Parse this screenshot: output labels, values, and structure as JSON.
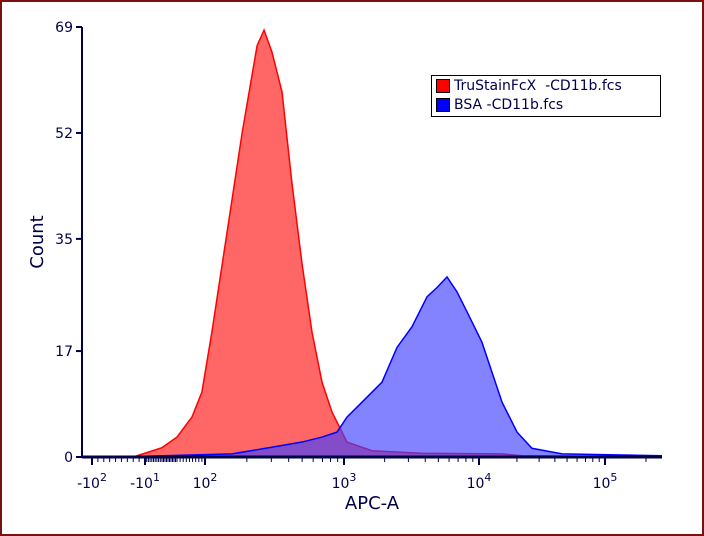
{
  "chart_data": {
    "type": "area",
    "xlabel": "APC-A",
    "ylabel": "Count",
    "x_scale": "logicle",
    "xlim": [
      -150,
      262144
    ],
    "ylim": [
      0,
      69
    ],
    "x_ticks": [
      {
        "value": -100,
        "base": "-10",
        "exp": "2"
      },
      {
        "value": -10,
        "base": "-10",
        "exp": "1"
      },
      {
        "value": 100,
        "base": "10",
        "exp": "2"
      },
      {
        "value": 1000,
        "base": "10",
        "exp": "3"
      },
      {
        "value": 10000,
        "base": "10",
        "exp": "4"
      },
      {
        "value": 100000,
        "base": "10",
        "exp": "5"
      }
    ],
    "y_ticks": [
      0,
      17,
      35,
      52,
      69
    ],
    "grid": false,
    "legend_position": "top-right",
    "series": [
      {
        "name": "TruStainFcX  -CD11b.fcs",
        "color": "#ff0000",
        "fill": "#ff4040",
        "points": [
          [
            -30,
            0
          ],
          [
            0,
            1.5
          ],
          [
            10,
            3.2
          ],
          [
            58,
            6.4
          ],
          [
            90,
            10.4
          ],
          [
            112,
            20
          ],
          [
            144,
            36
          ],
          [
            185,
            52
          ],
          [
            237,
            66
          ],
          [
            266,
            68.5
          ],
          [
            303,
            65
          ],
          [
            358,
            58.6
          ],
          [
            422,
            44
          ],
          [
            499,
            31
          ],
          [
            589,
            20
          ],
          [
            695,
            12
          ],
          [
            820,
            7.2
          ],
          [
            1052,
            2.4
          ],
          [
            1611,
            1
          ],
          [
            3784,
            0.6
          ],
          [
            15230,
            0.5
          ],
          [
            21900,
            0.2
          ],
          [
            262144,
            0
          ]
        ]
      },
      {
        "name": "BSA -CD11b.fcs",
        "color": "#0000ff",
        "fill": "#4040ff",
        "points": [
          [
            -60,
            0
          ],
          [
            156,
            0.5
          ],
          [
            257,
            1.3
          ],
          [
            499,
            2.4
          ],
          [
            695,
            3.2
          ],
          [
            891,
            4
          ],
          [
            1052,
            6.4
          ],
          [
            1359,
            8.8
          ],
          [
            1911,
            12
          ],
          [
            2471,
            17.6
          ],
          [
            3190,
            20.9
          ],
          [
            4120,
            25.7
          ],
          [
            4887,
            27.2
          ],
          [
            5794,
            28.9
          ],
          [
            6871,
            26.5
          ],
          [
            8150,
            23.3
          ],
          [
            10560,
            18.4
          ],
          [
            12680,
            13.6
          ],
          [
            15230,
            8.8
          ],
          [
            20050,
            4
          ],
          [
            26300,
            1.4
          ],
          [
            45700,
            0.5
          ],
          [
            262144,
            0.2
          ]
        ]
      }
    ]
  }
}
